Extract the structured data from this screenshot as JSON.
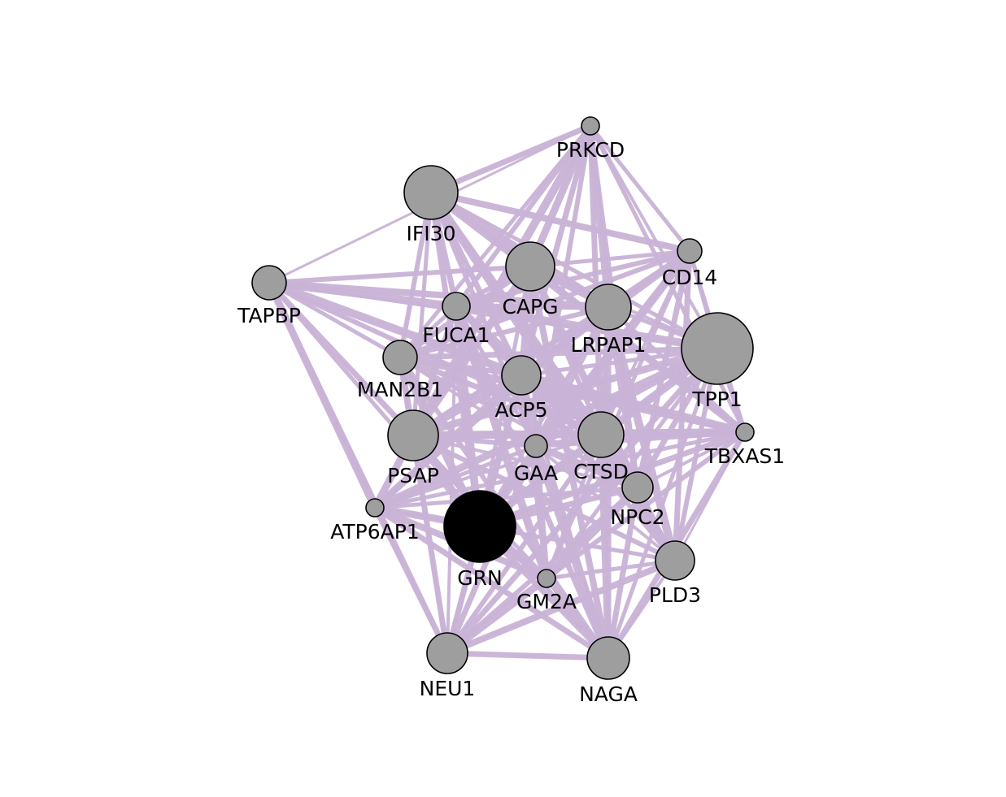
{
  "colors": {
    "edge": "#c9b3d6",
    "node_fill": "#9e9e9e",
    "query_node_fill": "#000000",
    "node_stroke": "#000000",
    "background": "#ffffff"
  },
  "network": {
    "nodes": [
      {
        "id": "PRKCD",
        "label": "PRKCD",
        "query": false
      },
      {
        "id": "IFI30",
        "label": "IFI30",
        "query": false
      },
      {
        "id": "CD14",
        "label": "CD14",
        "query": false
      },
      {
        "id": "TAPBP",
        "label": "TAPBP",
        "query": false
      },
      {
        "id": "CAPG",
        "label": "CAPG",
        "query": false
      },
      {
        "id": "FUCA1",
        "label": "FUCA1",
        "query": false
      },
      {
        "id": "LRPAP1",
        "label": "LRPAP1",
        "query": false
      },
      {
        "id": "TPP1",
        "label": "TPP1",
        "query": false
      },
      {
        "id": "MAN2B1",
        "label": "MAN2B1",
        "query": false
      },
      {
        "id": "ACP5",
        "label": "ACP5",
        "query": false
      },
      {
        "id": "PSAP",
        "label": "PSAP",
        "query": false
      },
      {
        "id": "TBXAS1",
        "label": "TBXAS1",
        "query": false
      },
      {
        "id": "GAA",
        "label": "GAA",
        "query": false
      },
      {
        "id": "CTSD",
        "label": "CTSD",
        "query": false
      },
      {
        "id": "NPC2",
        "label": "NPC2",
        "query": false
      },
      {
        "id": "ATP6AP1",
        "label": "ATP6AP1",
        "query": false
      },
      {
        "id": "GRN",
        "label": "GRN",
        "query": true
      },
      {
        "id": "GM2A",
        "label": "GM2A",
        "query": false
      },
      {
        "id": "PLD3",
        "label": "PLD3",
        "query": false
      },
      {
        "id": "NEU1",
        "label": "NEU1",
        "query": false
      },
      {
        "id": "NAGA",
        "label": "NAGA",
        "query": false
      }
    ],
    "edges": [
      [
        "PRKCD",
        "IFI30"
      ],
      [
        "PRKCD",
        "CD14"
      ],
      [
        "PRKCD",
        "CAPG"
      ],
      [
        "PRKCD",
        "FUCA1"
      ],
      [
        "PRKCD",
        "LRPAP1"
      ],
      [
        "PRKCD",
        "TPP1"
      ],
      [
        "PRKCD",
        "ACP5"
      ],
      [
        "PRKCD",
        "PSAP"
      ],
      [
        "PRKCD",
        "TBXAS1"
      ],
      [
        "PRKCD",
        "GAA"
      ],
      [
        "PRKCD",
        "CTSD"
      ],
      [
        "PRKCD",
        "MAN2B1"
      ],
      [
        "PRKCD",
        "TAPBP"
      ],
      [
        "PRKCD",
        "NPC2"
      ],
      [
        "IFI30",
        "CD14"
      ],
      [
        "IFI30",
        "CAPG"
      ],
      [
        "IFI30",
        "FUCA1"
      ],
      [
        "IFI30",
        "LRPAP1"
      ],
      [
        "IFI30",
        "TPP1"
      ],
      [
        "IFI30",
        "MAN2B1"
      ],
      [
        "IFI30",
        "ACP5"
      ],
      [
        "IFI30",
        "PSAP"
      ],
      [
        "IFI30",
        "TBXAS1"
      ],
      [
        "IFI30",
        "GAA"
      ],
      [
        "IFI30",
        "CTSD"
      ],
      [
        "IFI30",
        "NPC2"
      ],
      [
        "IFI30",
        "GRN"
      ],
      [
        "IFI30",
        "PLD3"
      ],
      [
        "CD14",
        "CAPG"
      ],
      [
        "CD14",
        "FUCA1"
      ],
      [
        "CD14",
        "LRPAP1"
      ],
      [
        "CD14",
        "TPP1"
      ],
      [
        "CD14",
        "ACP5"
      ],
      [
        "CD14",
        "PSAP"
      ],
      [
        "CD14",
        "GAA"
      ],
      [
        "CD14",
        "CTSD"
      ],
      [
        "CD14",
        "NPC2"
      ],
      [
        "CD14",
        "GRN"
      ],
      [
        "CD14",
        "TBXAS1"
      ],
      [
        "CD14",
        "MAN2B1"
      ],
      [
        "CD14",
        "PLD3"
      ],
      [
        "CD14",
        "GM2A"
      ],
      [
        "TAPBP",
        "FUCA1"
      ],
      [
        "TAPBP",
        "CAPG"
      ],
      [
        "TAPBP",
        "LRPAP1"
      ],
      [
        "TAPBP",
        "TPP1"
      ],
      [
        "TAPBP",
        "PSAP"
      ],
      [
        "TAPBP",
        "ACP5"
      ],
      [
        "TAPBP",
        "MAN2B1"
      ],
      [
        "TAPBP",
        "CTSD"
      ],
      [
        "TAPBP",
        "NEU1"
      ],
      [
        "TAPBP",
        "GRN"
      ],
      [
        "TAPBP",
        "ATP6AP1"
      ],
      [
        "CAPG",
        "FUCA1"
      ],
      [
        "CAPG",
        "LRPAP1"
      ],
      [
        "CAPG",
        "TPP1"
      ],
      [
        "CAPG",
        "ACP5"
      ],
      [
        "CAPG",
        "PSAP"
      ],
      [
        "CAPG",
        "GAA"
      ],
      [
        "CAPG",
        "CTSD"
      ],
      [
        "CAPG",
        "MAN2B1"
      ],
      [
        "CAPG",
        "GRN"
      ],
      [
        "CAPG",
        "NPC2"
      ],
      [
        "CAPG",
        "TBXAS1"
      ],
      [
        "CAPG",
        "NAGA"
      ],
      [
        "CAPG",
        "PLD3"
      ],
      [
        "FUCA1",
        "LRPAP1"
      ],
      [
        "FUCA1",
        "TPP1"
      ],
      [
        "FUCA1",
        "MAN2B1"
      ],
      [
        "FUCA1",
        "ACP5"
      ],
      [
        "FUCA1",
        "PSAP"
      ],
      [
        "FUCA1",
        "GAA"
      ],
      [
        "FUCA1",
        "CTSD"
      ],
      [
        "FUCA1",
        "NPC2"
      ],
      [
        "FUCA1",
        "GRN"
      ],
      [
        "FUCA1",
        "NEU1"
      ],
      [
        "FUCA1",
        "NAGA"
      ],
      [
        "FUCA1",
        "GM2A"
      ],
      [
        "LRPAP1",
        "TPP1"
      ],
      [
        "LRPAP1",
        "MAN2B1"
      ],
      [
        "LRPAP1",
        "ACP5"
      ],
      [
        "LRPAP1",
        "PSAP"
      ],
      [
        "LRPAP1",
        "GAA"
      ],
      [
        "LRPAP1",
        "CTSD"
      ],
      [
        "LRPAP1",
        "NPC2"
      ],
      [
        "LRPAP1",
        "GRN"
      ],
      [
        "LRPAP1",
        "NAGA"
      ],
      [
        "LRPAP1",
        "PLD3"
      ],
      [
        "LRPAP1",
        "TBXAS1"
      ],
      [
        "LRPAP1",
        "ATP6AP1"
      ],
      [
        "TPP1",
        "MAN2B1"
      ],
      [
        "TPP1",
        "ACP5"
      ],
      [
        "TPP1",
        "PSAP"
      ],
      [
        "TPP1",
        "TBXAS1"
      ],
      [
        "TPP1",
        "GAA"
      ],
      [
        "TPP1",
        "CTSD"
      ],
      [
        "TPP1",
        "NPC2"
      ],
      [
        "TPP1",
        "GRN"
      ],
      [
        "TPP1",
        "GM2A"
      ],
      [
        "TPP1",
        "PLD3"
      ],
      [
        "TPP1",
        "NEU1"
      ],
      [
        "TPP1",
        "NAGA"
      ],
      [
        "TPP1",
        "ATP6AP1"
      ],
      [
        "MAN2B1",
        "ACP5"
      ],
      [
        "MAN2B1",
        "PSAP"
      ],
      [
        "MAN2B1",
        "GAA"
      ],
      [
        "MAN2B1",
        "CTSD"
      ],
      [
        "MAN2B1",
        "GRN"
      ],
      [
        "MAN2B1",
        "NEU1"
      ],
      [
        "MAN2B1",
        "NAGA"
      ],
      [
        "MAN2B1",
        "TBXAS1"
      ],
      [
        "MAN2B1",
        "NPC2"
      ],
      [
        "ACP5",
        "PSAP"
      ],
      [
        "ACP5",
        "GAA"
      ],
      [
        "ACP5",
        "CTSD"
      ],
      [
        "ACP5",
        "NPC2"
      ],
      [
        "ACP5",
        "GRN"
      ],
      [
        "ACP5",
        "TBXAS1"
      ],
      [
        "ACP5",
        "GM2A"
      ],
      [
        "ACP5",
        "PLD3"
      ],
      [
        "ACP5",
        "NEU1"
      ],
      [
        "ACP5",
        "NAGA"
      ],
      [
        "ACP5",
        "ATP6AP1"
      ],
      [
        "PSAP",
        "GAA"
      ],
      [
        "PSAP",
        "CTSD"
      ],
      [
        "PSAP",
        "NPC2"
      ],
      [
        "PSAP",
        "GRN"
      ],
      [
        "PSAP",
        "TBXAS1"
      ],
      [
        "PSAP",
        "GM2A"
      ],
      [
        "PSAP",
        "PLD3"
      ],
      [
        "PSAP",
        "NEU1"
      ],
      [
        "PSAP",
        "NAGA"
      ],
      [
        "PSAP",
        "ATP6AP1"
      ],
      [
        "TBXAS1",
        "GAA"
      ],
      [
        "TBXAS1",
        "CTSD"
      ],
      [
        "TBXAS1",
        "NPC2"
      ],
      [
        "TBXAS1",
        "GRN"
      ],
      [
        "TBXAS1",
        "PLD3"
      ],
      [
        "TBXAS1",
        "ATP6AP1"
      ],
      [
        "TBXAS1",
        "GM2A"
      ],
      [
        "TBXAS1",
        "NAGA"
      ],
      [
        "GAA",
        "CTSD"
      ],
      [
        "GAA",
        "NPC2"
      ],
      [
        "GAA",
        "GRN"
      ],
      [
        "GAA",
        "GM2A"
      ],
      [
        "GAA",
        "PLD3"
      ],
      [
        "GAA",
        "NEU1"
      ],
      [
        "GAA",
        "NAGA"
      ],
      [
        "GAA",
        "ATP6AP1"
      ],
      [
        "CTSD",
        "NPC2"
      ],
      [
        "CTSD",
        "GRN"
      ],
      [
        "CTSD",
        "GM2A"
      ],
      [
        "CTSD",
        "PLD3"
      ],
      [
        "CTSD",
        "NEU1"
      ],
      [
        "CTSD",
        "NAGA"
      ],
      [
        "CTSD",
        "ATP6AP1"
      ],
      [
        "NPC2",
        "GRN"
      ],
      [
        "NPC2",
        "GM2A"
      ],
      [
        "NPC2",
        "PLD3"
      ],
      [
        "NPC2",
        "NEU1"
      ],
      [
        "NPC2",
        "NAGA"
      ],
      [
        "NPC2",
        "ATP6AP1"
      ],
      [
        "ATP6AP1",
        "GRN"
      ],
      [
        "ATP6AP1",
        "NEU1"
      ],
      [
        "ATP6AP1",
        "GM2A"
      ],
      [
        "ATP6AP1",
        "PLD3"
      ],
      [
        "ATP6AP1",
        "NAGA"
      ],
      [
        "GRN",
        "GM2A"
      ],
      [
        "GRN",
        "PLD3"
      ],
      [
        "GRN",
        "NEU1"
      ],
      [
        "GRN",
        "NAGA"
      ],
      [
        "GM2A",
        "PLD3"
      ],
      [
        "GM2A",
        "NEU1"
      ],
      [
        "GM2A",
        "NAGA"
      ],
      [
        "PLD3",
        "NEU1"
      ],
      [
        "PLD3",
        "NAGA"
      ],
      [
        "NEU1",
        "NAGA"
      ]
    ]
  }
}
